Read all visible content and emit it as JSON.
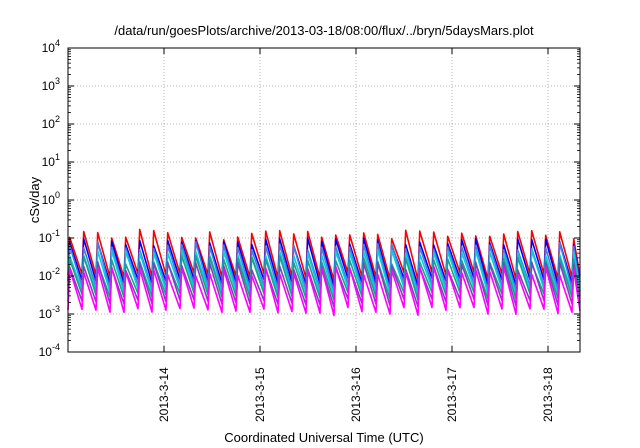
{
  "chart_data": {
    "type": "line",
    "title": "/data/run/goesPlots/archive/2013-03-18/08:00/flux/../bryn/5daysMars.plot",
    "xlabel": "Coordinated Universal Time (UTC)",
    "ylabel": "cSv/day",
    "yscale": "log",
    "ylim": [
      0.0001,
      10000
    ],
    "y_ticks": [
      {
        "value": 0.0001,
        "label_base": "10",
        "label_exp": "-4"
      },
      {
        "value": 0.001,
        "label_base": "10",
        "label_exp": "-3"
      },
      {
        "value": 0.01,
        "label_base": "10",
        "label_exp": "-2"
      },
      {
        "value": 0.1,
        "label_base": "10",
        "label_exp": "-1"
      },
      {
        "value": 1,
        "label_base": "10",
        "label_exp": "0"
      },
      {
        "value": 10,
        "label_base": "10",
        "label_exp": "1"
      },
      {
        "value": 100,
        "label_base": "10",
        "label_exp": "2"
      },
      {
        "value": 1000,
        "label_base": "10",
        "label_exp": "3"
      },
      {
        "value": 10000,
        "label_base": "10",
        "label_exp": "4"
      }
    ],
    "xlim": [
      "2013-03-13T00:00",
      "2013-03-18T08:00"
    ],
    "x_ticks": [
      {
        "value": "2013-03-14T00:00",
        "label": "2013-3-14"
      },
      {
        "value": "2013-03-15T00:00",
        "label": "2013-3-15"
      },
      {
        "value": "2013-03-16T00:00",
        "label": "2013-3-16"
      },
      {
        "value": "2013-03-17T00:00",
        "label": "2013-3-17"
      },
      {
        "value": "2013-03-18T00:00",
        "label": "2013-3-18"
      }
    ],
    "grid": true,
    "legend": "none",
    "pattern": {
      "start": "2013-03-13T00:00",
      "end": "2013-03-18T08:00",
      "cycle_hours": 3.5,
      "description": "sawtooth flux: sharp rise, gradual decay each cycle"
    },
    "series": [
      {
        "color": "#ff0000",
        "peak_min": 0.09,
        "peak_max": 0.17,
        "trough": 0.01
      },
      {
        "color": "#0000ff",
        "peak_min": 0.06,
        "peak_max": 0.1,
        "trough": 0.007
      },
      {
        "color": "#4a7bd8",
        "peak_min": 0.045,
        "peak_max": 0.08,
        "trough": 0.005
      },
      {
        "color": "#00d0e0",
        "peak_min": 0.03,
        "peak_max": 0.05,
        "trough": 0.004
      },
      {
        "color": "#20a080",
        "peak_min": 0.02,
        "peak_max": 0.035,
        "trough": 0.003
      },
      {
        "color": "#8040c0",
        "peak_min": 0.014,
        "peak_max": 0.025,
        "trough": 0.002
      },
      {
        "color": "#ff00ff",
        "peak_min": 0.01,
        "peak_max": 0.018,
        "trough": 0.0012
      }
    ]
  }
}
